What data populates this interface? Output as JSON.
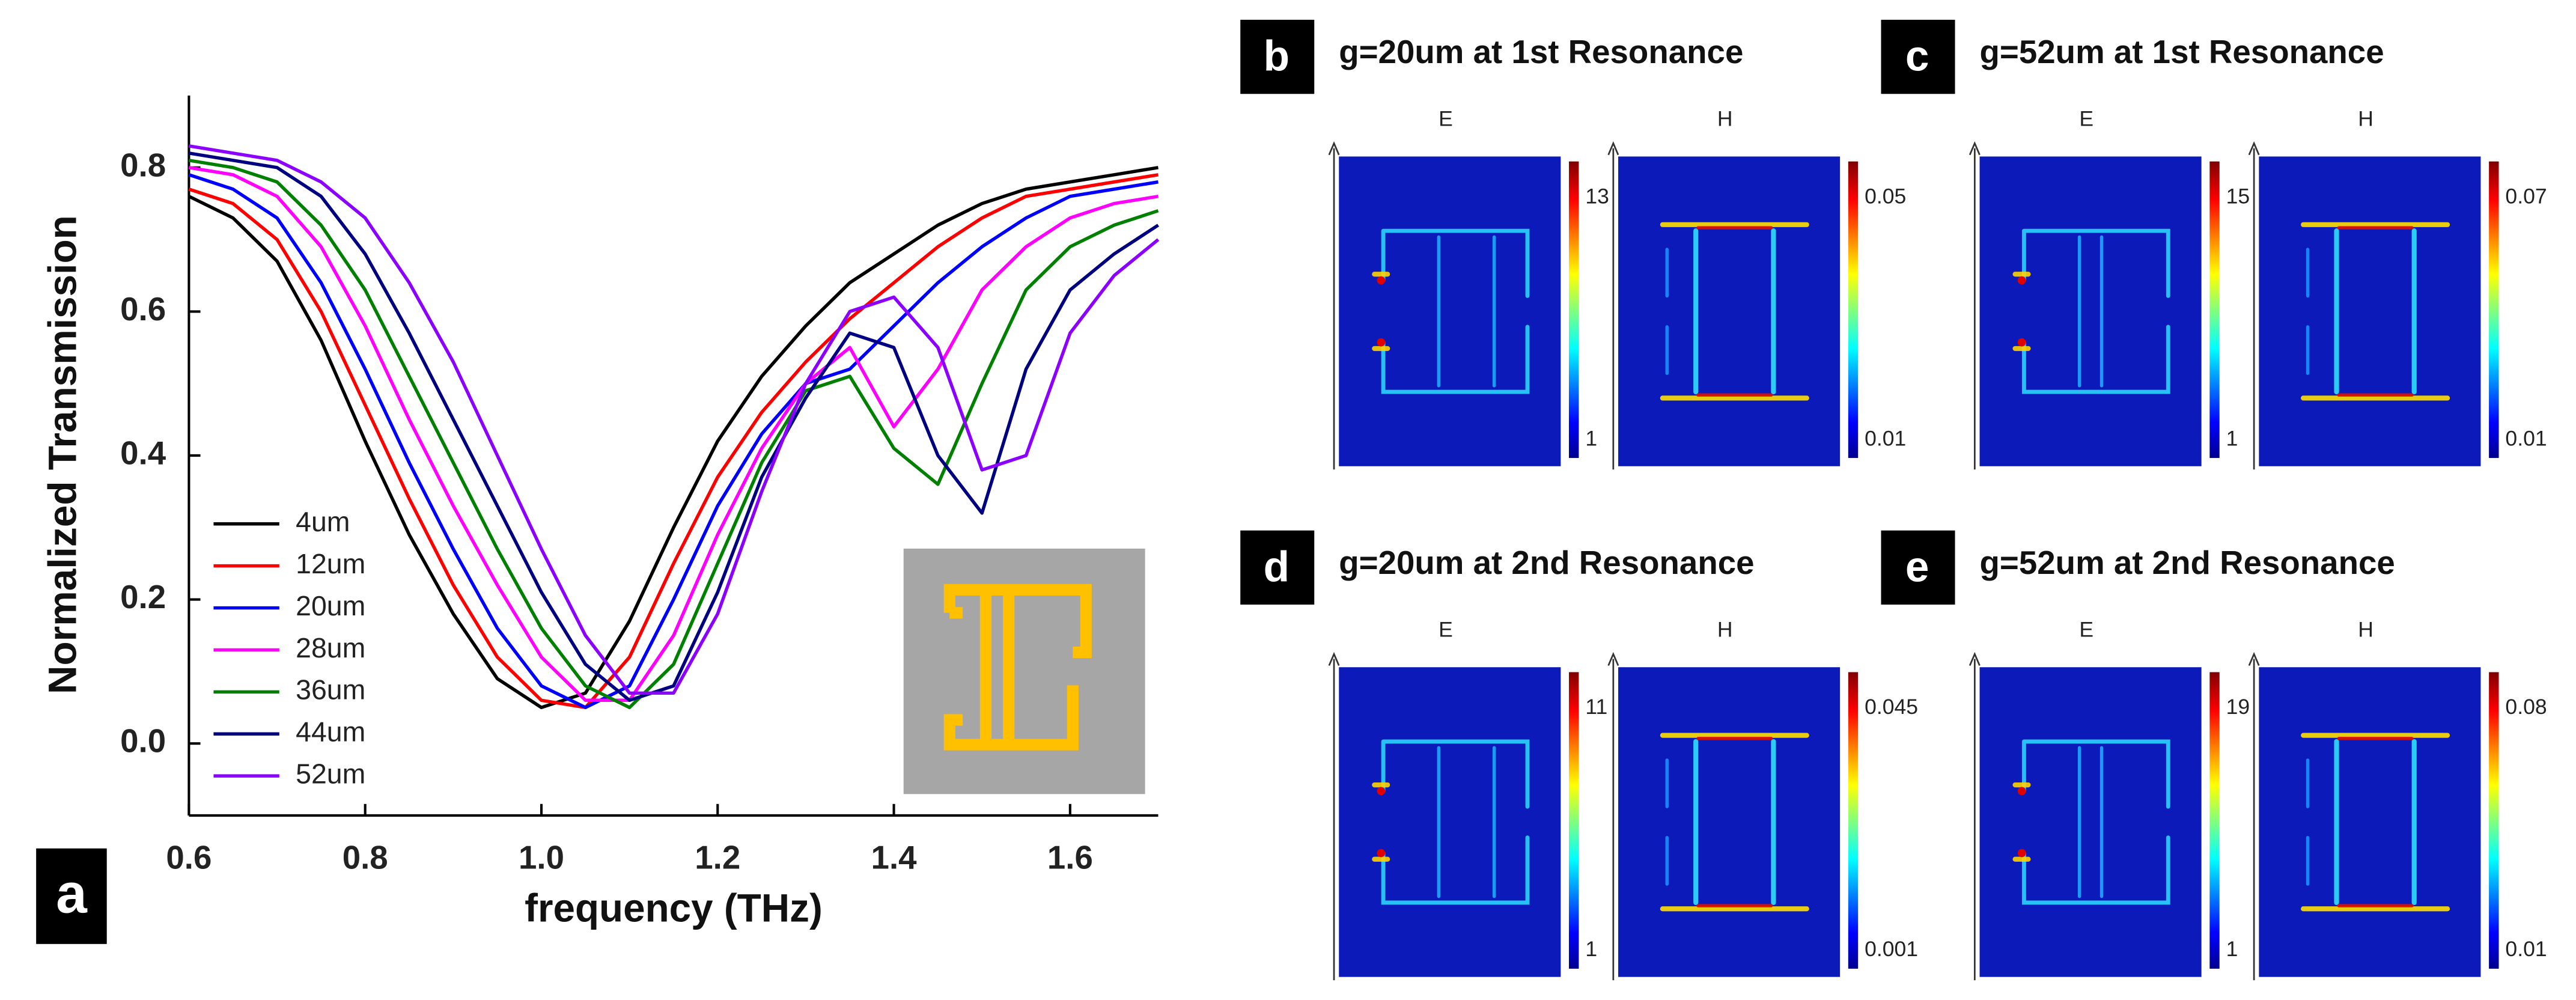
{
  "chart_data": {
    "type": "line",
    "panel_label": "a",
    "xlabel": "frequency (THz)",
    "ylabel": "Normalized Transmission",
    "x": [
      0.6,
      0.65,
      0.7,
      0.75,
      0.8,
      0.85,
      0.9,
      0.95,
      1.0,
      1.05,
      1.1,
      1.15,
      1.2,
      1.25,
      1.3,
      1.35,
      1.4,
      1.45,
      1.5,
      1.55,
      1.6,
      1.65,
      1.7
    ],
    "xlim": [
      0.6,
      1.7
    ],
    "xticks": [
      0.6,
      0.8,
      {
        "value": 1,
        "label": "1.0"
      },
      1.2,
      1.4,
      1.6
    ],
    "ylim": [
      -0.1,
      0.9
    ],
    "yticks": [
      {
        "value": 0,
        "label": "0.0"
      },
      0.2,
      0.4,
      0.6,
      0.8
    ],
    "series": [
      {
        "name": "4um",
        "color": "#000000",
        "values": [
          0.76,
          0.73,
          0.67,
          0.56,
          0.42,
          0.29,
          0.18,
          0.09,
          0.05,
          0.07,
          0.17,
          0.3,
          0.42,
          0.51,
          0.58,
          0.64,
          0.68,
          0.72,
          0.75,
          0.77,
          0.78,
          0.79,
          0.8
        ]
      },
      {
        "name": "12um",
        "color": "#ff0000",
        "values": [
          0.77,
          0.75,
          0.7,
          0.6,
          0.47,
          0.34,
          0.22,
          0.12,
          0.06,
          0.05,
          0.12,
          0.25,
          0.37,
          0.46,
          0.53,
          0.59,
          0.64,
          0.69,
          0.73,
          0.76,
          0.77,
          0.78,
          0.79
        ]
      },
      {
        "name": "20um",
        "color": "#0000ff",
        "values": [
          0.79,
          0.77,
          0.73,
          0.64,
          0.52,
          0.39,
          0.27,
          0.16,
          0.08,
          0.05,
          0.08,
          0.2,
          0.33,
          0.43,
          0.5,
          0.52,
          0.58,
          0.64,
          0.69,
          0.73,
          0.76,
          0.77,
          0.78
        ]
      },
      {
        "name": "28um",
        "color": "#ff00ff",
        "values": [
          0.8,
          0.79,
          0.76,
          0.69,
          0.58,
          0.45,
          0.33,
          0.22,
          0.12,
          0.06,
          0.06,
          0.15,
          0.29,
          0.41,
          0.5,
          0.55,
          0.44,
          0.52,
          0.63,
          0.69,
          0.73,
          0.75,
          0.76
        ]
      },
      {
        "name": "36um",
        "color": "#008000",
        "values": [
          0.81,
          0.8,
          0.78,
          0.72,
          0.63,
          0.51,
          0.39,
          0.27,
          0.16,
          0.08,
          0.05,
          0.11,
          0.25,
          0.39,
          0.49,
          0.51,
          0.41,
          0.36,
          0.5,
          0.63,
          0.69,
          0.72,
          0.74
        ]
      },
      {
        "name": "44um",
        "color": "#000080",
        "values": [
          0.82,
          0.81,
          0.8,
          0.76,
          0.68,
          0.57,
          0.45,
          0.33,
          0.21,
          0.11,
          0.06,
          0.08,
          0.21,
          0.37,
          0.48,
          0.57,
          0.55,
          0.4,
          0.32,
          0.52,
          0.63,
          0.68,
          0.72
        ]
      },
      {
        "name": "52um",
        "color": "#8b00ff",
        "values": [
          0.83,
          0.82,
          0.81,
          0.78,
          0.73,
          0.64,
          0.53,
          0.4,
          0.27,
          0.15,
          0.07,
          0.07,
          0.18,
          0.35,
          0.5,
          0.6,
          0.62,
          0.55,
          0.38,
          0.4,
          0.57,
          0.65,
          0.7
        ]
      }
    ]
  },
  "panels": [
    {
      "letter": "b",
      "title": "g=20um at 1st Resonance",
      "maps": [
        {
          "field": "E",
          "max": "13",
          "min": "1"
        },
        {
          "field": "H",
          "max": "0.05",
          "min": "0.01"
        }
      ]
    },
    {
      "letter": "c",
      "title": "g=52um at 1st Resonance",
      "maps": [
        {
          "field": "E",
          "max": "15",
          "min": "1"
        },
        {
          "field": "H",
          "max": "0.07",
          "min": "0.01"
        }
      ]
    },
    {
      "letter": "d",
      "title": "g=20um at 2nd Resonance",
      "maps": [
        {
          "field": "E",
          "max": "11",
          "min": "1"
        },
        {
          "field": "H",
          "max": "0.045",
          "min": "0.001"
        }
      ]
    },
    {
      "letter": "e",
      "title": "g=52um at 2nd Resonance",
      "maps": [
        {
          "field": "E",
          "max": "19",
          "min": "1"
        },
        {
          "field": "H",
          "max": "0.08",
          "min": "0.01"
        }
      ]
    }
  ]
}
